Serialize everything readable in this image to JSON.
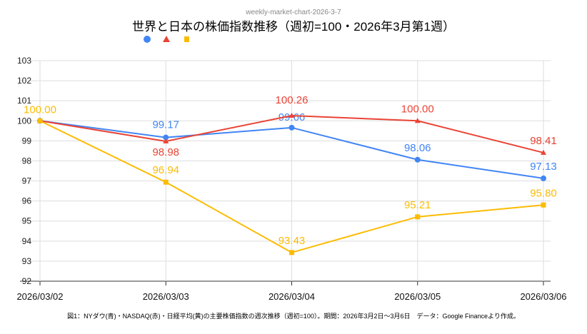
{
  "subtitle_top": "weekly-market-chart-2026-3-7",
  "caption": "図1：NYダウ(青)・NASDAQ(赤)・日経平均(黄)の主要株価指数の週次推移（週初=100）。期間：2026年3月2日〜3月6日　データ：Google Financeより作成。",
  "chart_data": {
    "type": "line",
    "title": "世界と日本の株価指数推移（週初=100・2026年3月第1週）",
    "categories": [
      "2026/03/02",
      "2026/03/03",
      "2026/03/04",
      "2026/03/05",
      "2026/03/06"
    ],
    "ylim": [
      92,
      103
    ],
    "yticks": [
      92,
      93,
      94,
      95,
      96,
      97,
      98,
      99,
      100,
      101,
      102,
      103
    ],
    "grid": true,
    "legend": "top-left",
    "series": [
      {
        "marker": "circle",
        "color": "#4285f4",
        "values": [
          100,
          99.17,
          99.66,
          98.06,
          97.13
        ],
        "labels": [
          "",
          "99.17",
          "99.66",
          "98.06",
          "97.13"
        ]
      },
      {
        "marker": "triangle",
        "color": "#ea4335",
        "values": [
          100,
          98.98,
          100.26,
          100.0,
          98.41
        ],
        "labels": [
          "",
          "98.98",
          "100.26",
          "100.00",
          "98.41"
        ]
      },
      {
        "marker": "square",
        "color": "#fbbc04",
        "values": [
          100,
          96.94,
          93.43,
          95.21,
          95.8
        ],
        "labels": [
          "100.00",
          "96.94",
          "93.43",
          "95.21",
          "95.80"
        ]
      }
    ]
  }
}
